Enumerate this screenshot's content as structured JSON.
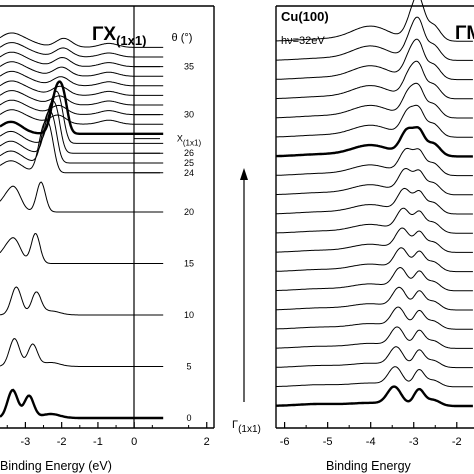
{
  "chart_data": [
    {
      "type": "line",
      "panel": "left",
      "title_main": "ΓX",
      "title_sub": "(1x1)",
      "xlabel": "Binding Energy (eV)",
      "xlim": [
        -3.7,
        2.2
      ],
      "x_ticks": [
        "-3",
        "-2",
        "-1",
        "0",
        "2"
      ],
      "x_tick_values": [
        -3,
        -2,
        -1,
        0,
        2
      ],
      "x_minor": [
        -3.5,
        -2.5,
        -1.5,
        -0.5,
        0.5,
        1.5
      ],
      "grid": false,
      "angle_axis_label": "θ (°)",
      "fermi_level": 0,
      "angle_labels": [
        {
          "text": "35",
          "theta": 35
        },
        {
          "text": "30",
          "theta": 30
        },
        {
          "text": "X",
          "sub": "(1x1)",
          "theta": 27.5
        },
        {
          "text": "26",
          "theta": 26
        },
        {
          "text": "25",
          "theta": 25
        },
        {
          "text": "24",
          "theta": 24
        },
        {
          "text": "20",
          "theta": 20
        },
        {
          "text": "15",
          "theta": 15
        },
        {
          "text": "10",
          "theta": 10
        },
        {
          "text": "5",
          "theta": 5
        },
        {
          "text": "0",
          "theta": 0
        }
      ],
      "series_angles": [
        0,
        5,
        10,
        15,
        20,
        24,
        25,
        26,
        27,
        28,
        29,
        30,
        31,
        32,
        33,
        34,
        35,
        36,
        37
      ],
      "bold_series_angles": [
        0,
        28
      ]
    },
    {
      "type": "line",
      "panel": "right",
      "label_material": "Cu(100)",
      "label_photon": "hν=32eV",
      "title_main": "ΓM",
      "xlabel": "Binding Energy",
      "xlim": [
        -6.2,
        -1.6
      ],
      "x_ticks": [
        "-6",
        "-5",
        "-4",
        "-3",
        "-2"
      ],
      "x_tick_values": [
        -6,
        -5,
        -4,
        -3,
        -2
      ],
      "x_minor": [
        -5.5,
        -4.5,
        -3.5,
        -2.5
      ],
      "grid": false,
      "arrow_start_label": "Γ",
      "arrow_start_sub": "(1x1)",
      "series_count": 20,
      "bold_series_index": [
        0,
        13
      ]
    }
  ]
}
